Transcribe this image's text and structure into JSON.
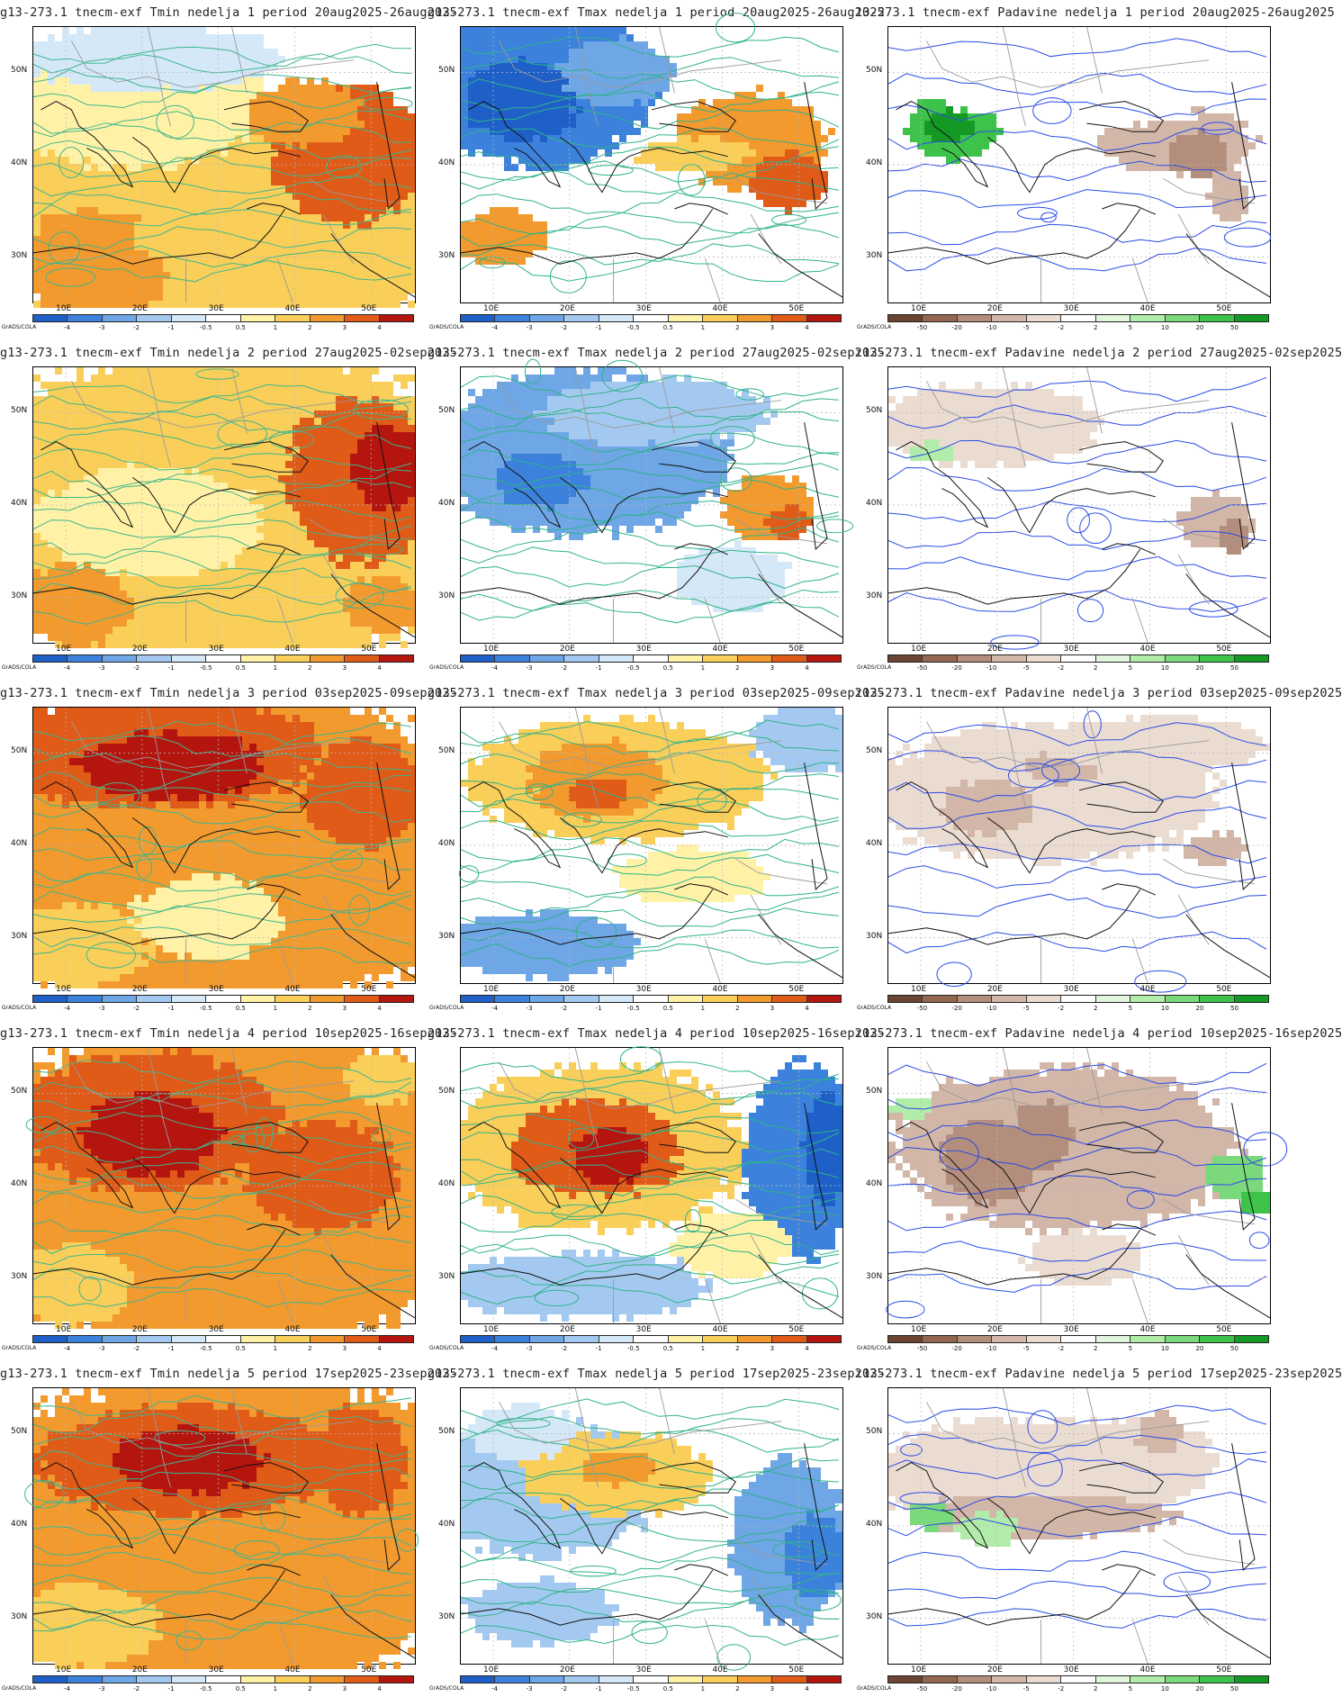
{
  "common": {
    "lat_labels": [
      "50N",
      "40N",
      "30N"
    ],
    "lon_labels": [
      "10E",
      "20E",
      "30E",
      "40E",
      "50E"
    ],
    "credit": "GrADS/COLA"
  },
  "colorbars": {
    "temp": {
      "ticks": [
        "-4",
        "-3",
        "-2",
        "-1",
        "-0.5",
        "0.5",
        "1",
        "2",
        "3",
        "4"
      ],
      "colors": [
        "#1e60c8",
        "#3c82dc",
        "#6ea6e6",
        "#a4c9f0",
        "#d4e8f8",
        "#ffffff",
        "#fff2a6",
        "#f9cf5a",
        "#f29a2e",
        "#e05a18",
        "#b5150f"
      ]
    },
    "precip": {
      "ticks": [
        "-50",
        "-20",
        "-10",
        "-5",
        "-2",
        "2",
        "5",
        "10",
        "20",
        "50"
      ],
      "colors": [
        "#6b4531",
        "#936650",
        "#b48e7c",
        "#d2b6a8",
        "#ebdcd2",
        "#ffffff",
        "#e2f6de",
        "#b2ecaa",
        "#7ad97a",
        "#3ec34a",
        "#149a24"
      ]
    }
  },
  "accent_colors": {
    "tmin_contour": "#3fb68c",
    "tmax_contour": "#2fb38a",
    "precip_contour": "#2a4be6",
    "coast": "#111111",
    "border": "#9a9a9a"
  },
  "panels": [
    {
      "title": "g13-273.1 tnecm-exf Tmin nedelja 1 period 20aug2025-26aug2025",
      "var": "tmin",
      "week": 1
    },
    {
      "title": "g13-273.1 tnecm-exf Tmax nedelja 1 period 20aug2025-26aug2025",
      "var": "tmax",
      "week": 1
    },
    {
      "title": "13-273.1 tnecm-exf Padavine nedelja 1 period 20aug2025-26aug2025",
      "var": "precip",
      "week": 1
    },
    {
      "title": "g13-273.1 tnecm-exf Tmin nedelja 2 period 27aug2025-02sep2025",
      "var": "tmin",
      "week": 2
    },
    {
      "title": "g13-273.1 tnecm-exf Tmax nedelja 2 period 27aug2025-02sep2025",
      "var": "tmax",
      "week": 2
    },
    {
      "title": "ı13-273.1 tnecm-exf Padavine nedelja 2 period 27aug2025-02sep2025",
      "var": "precip",
      "week": 2
    },
    {
      "title": "g13-273.1 tnecm-exf Tmin nedelja 3 period 03sep2025-09sep2025",
      "var": "tmin",
      "week": 3
    },
    {
      "title": "g13-273.1 tnecm-exf Tmax nedelja 3 period 03sep2025-09sep2025",
      "var": "tmax",
      "week": 3
    },
    {
      "title": "ı13-273.1 tnecm-exf Padavine nedelja 3 period 03sep2025-09sep2025",
      "var": "precip",
      "week": 3
    },
    {
      "title": "g13-273.1 tnecm-exf Tmin nedelja 4 period 10sep2025-16sep2025",
      "var": "tmin",
      "week": 4
    },
    {
      "title": "g13-273.1 tnecm-exf Tmax nedelja 4 period 10sep2025-16sep2025",
      "var": "tmax",
      "week": 4
    },
    {
      "title": "ı13-273.1 tnecm-exf Padavine nedelja 4 period 10sep2025-16sep2025",
      "var": "precip",
      "week": 4
    },
    {
      "title": "g13-273.1 tnecm-exf Tmin nedelja 5 period 17sep2025-23sep2025",
      "var": "tmin",
      "week": 5
    },
    {
      "title": "g13-273.1 tnecm-exf Tmax nedelja 5 period 17sep2025-23sep2025",
      "var": "tmax",
      "week": 5
    },
    {
      "title": "ı13-273.1 tnecm-exf Padavine nedelja 5 period 17sep2025-23sep2025",
      "var": "precip",
      "week": 5
    }
  ]
}
